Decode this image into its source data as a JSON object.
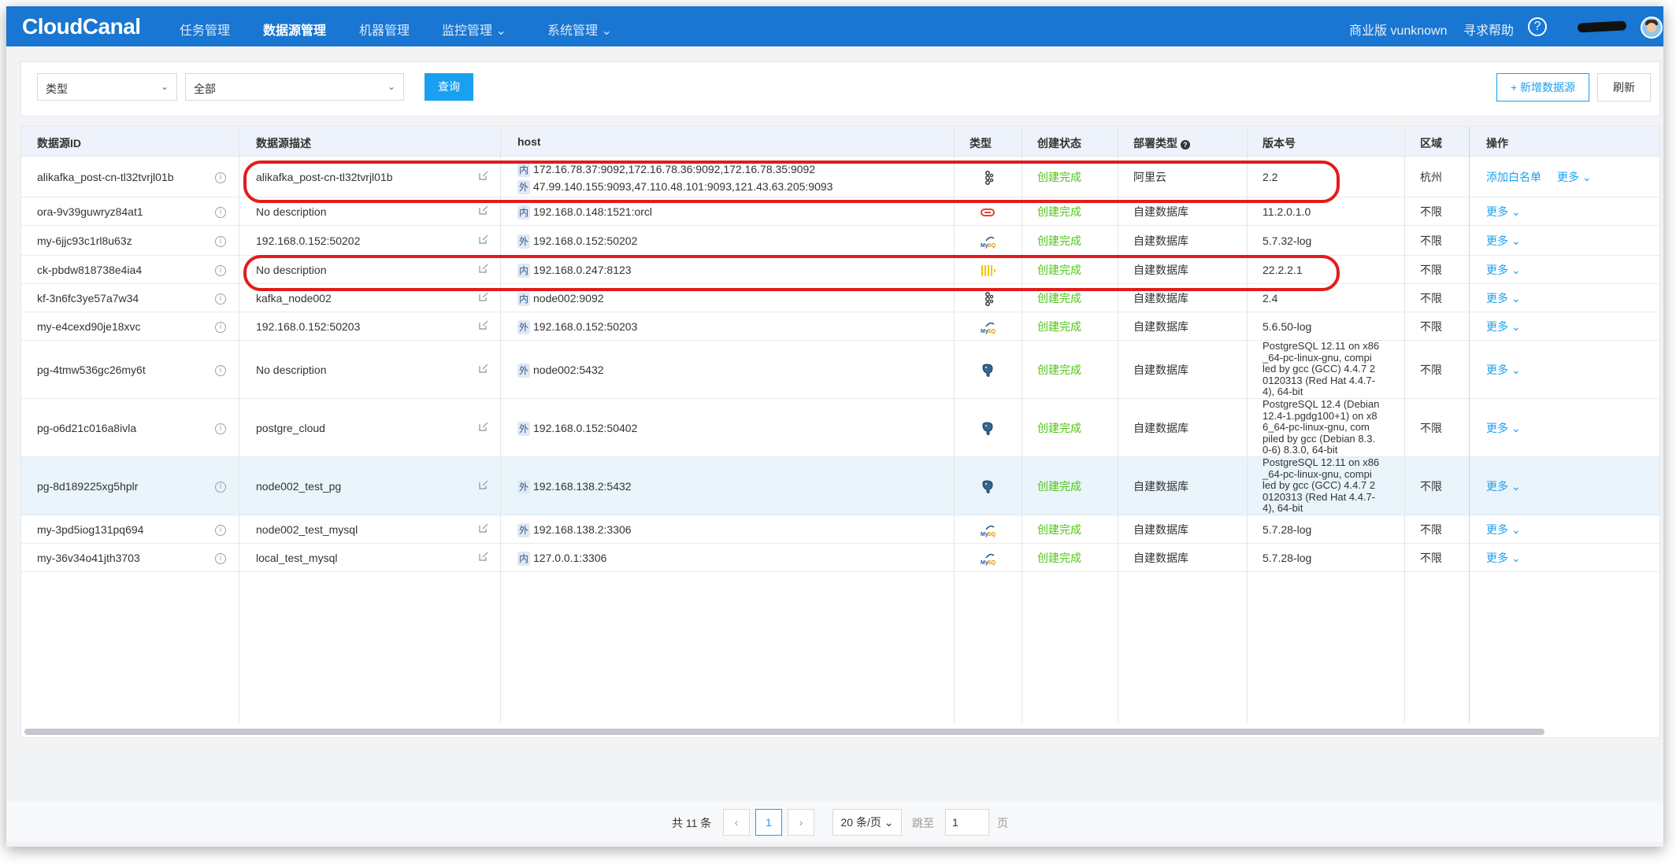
{
  "nav": {
    "logo": "CloudCanal",
    "items": [
      {
        "label": "任务管理"
      },
      {
        "label": "数据源管理"
      },
      {
        "label": "机器管理"
      },
      {
        "label": "监控管理 ⌄"
      },
      {
        "label": "系统管理 ⌄"
      }
    ],
    "edition": "商业版 vunknown",
    "help": "寻求帮助",
    "help_icon": "?"
  },
  "filter": {
    "type_select": "类型",
    "value_select": "全部",
    "query_button": "查询",
    "add_button": "+ 新增数据源",
    "refresh_button": "刷新"
  },
  "table": {
    "headers": {
      "id": "数据源ID",
      "desc": "数据源描述",
      "host": "host",
      "type": "类型",
      "status": "创建状态",
      "deploy": "部署类型",
      "version": "版本号",
      "region": "区域",
      "ops": "操作"
    },
    "rows": [
      {
        "id": "alikafka_post-cn-tl32tvrjl01b",
        "desc": "alikafka_post-cn-tl32tvrjl01b",
        "host1_tag": "内",
        "host1": "172.16.78.37:9092,172.16.78.36:9092,172.16.78.35:9092",
        "host2_tag": "外",
        "host2": "47.99.140.155:9093,47.110.48.101:9093,121.43.63.205:9093",
        "type": "kafka",
        "status": "创建完成",
        "deploy": "阿里云",
        "version": "2.2",
        "region": "杭州",
        "op_extra": "添加白名单",
        "op_more": "更多 ⌄"
      },
      {
        "id": "ora-9v39guwryz84at1",
        "desc": "No description",
        "host1_tag": "内",
        "host1": "192.168.0.148:1521:orcl",
        "type": "oracle",
        "status": "创建完成",
        "deploy": "自建数据库",
        "version": "11.2.0.1.0",
        "region": "不限",
        "op_more": "更多 ⌄"
      },
      {
        "id": "my-6jjc93c1rl8u63z",
        "desc": "192.168.0.152:50202",
        "host1_tag": "外",
        "host1": "192.168.0.152:50202",
        "type": "mysql",
        "status": "创建完成",
        "deploy": "自建数据库",
        "version": "5.7.32-log",
        "region": "不限",
        "op_more": "更多 ⌄"
      },
      {
        "id": "ck-pbdw818738e4ia4",
        "desc": "No description",
        "host1_tag": "内",
        "host1": "192.168.0.247:8123",
        "type": "clickhouse",
        "status": "创建完成",
        "deploy": "自建数据库",
        "version": "22.2.2.1",
        "region": "不限",
        "op_more": "更多 ⌄"
      },
      {
        "id": "kf-3n6fc3ye57a7w34",
        "desc": "kafka_node002",
        "host1_tag": "内",
        "host1": "node002:9092",
        "type": "kafka",
        "status": "创建完成",
        "deploy": "自建数据库",
        "version": "2.4",
        "region": "不限",
        "op_more": "更多 ⌄"
      },
      {
        "id": "my-e4cexd90je18xvc",
        "desc": "192.168.0.152:50203",
        "host1_tag": "外",
        "host1": "192.168.0.152:50203",
        "type": "mysql",
        "status": "创建完成",
        "deploy": "自建数据库",
        "version": "5.6.50-log",
        "region": "不限",
        "op_more": "更多 ⌄"
      },
      {
        "id": "pg-4tmw536gc26my6t",
        "desc": "No description",
        "host1_tag": "外",
        "host1": "node002:5432",
        "type": "postgresql",
        "status": "创建完成",
        "deploy": "自建数据库",
        "version_lines": [
          "PostgreSQL 12.11 on x86",
          "_64-pc-linux-gnu, compi",
          "led by gcc (GCC) 4.4.7 2",
          "0120313 (Red Hat 4.4.7-",
          "4), 64-bit"
        ],
        "region": "不限",
        "op_more": "更多 ⌄"
      },
      {
        "id": "pg-o6d21c016a8ivla",
        "desc": "postgre_cloud",
        "host1_tag": "外",
        "host1": "192.168.0.152:50402",
        "type": "postgresql",
        "status": "创建完成",
        "deploy": "自建数据库",
        "version_lines": [
          "PostgreSQL 12.4 (Debian",
          "12.4-1.pgdg100+1) on x8",
          "6_64-pc-linux-gnu, com",
          "piled by gcc (Debian 8.3.",
          "0-6) 8.3.0, 64-bit"
        ],
        "region": "不限",
        "op_more": "更多 ⌄"
      },
      {
        "id": "pg-8d189225xg5hplr",
        "desc": "node002_test_pg",
        "host1_tag": "外",
        "host1": "192.168.138.2:5432",
        "type": "postgresql",
        "status": "创建完成",
        "deploy": "自建数据库",
        "version_lines": [
          "PostgreSQL 12.11 on x86",
          "_64-pc-linux-gnu, compi",
          "led by gcc (GCC) 4.4.7 2",
          "0120313 (Red Hat 4.4.7-",
          "4), 64-bit"
        ],
        "region": "不限",
        "op_more": "更多 ⌄"
      },
      {
        "id": "my-3pd5iog131pq694",
        "desc": "node002_test_mysql",
        "host1_tag": "外",
        "host1": "192.168.138.2:3306",
        "type": "mysql",
        "status": "创建完成",
        "deploy": "自建数据库",
        "version": "5.7.28-log",
        "region": "不限",
        "op_more": "更多 ⌄"
      },
      {
        "id": "my-36v34o41jth3703",
        "desc": "local_test_mysql",
        "host1_tag": "内",
        "host1": "127.0.0.1:3306",
        "type": "mysql",
        "status": "创建完成",
        "deploy": "自建数据库",
        "version": "5.7.28-log",
        "region": "不限",
        "op_more": "更多 ⌄"
      }
    ]
  },
  "pagination": {
    "total": "共 11 条",
    "prev": "‹",
    "current": "1",
    "next": "›",
    "page_size": "20 条/页 ⌄",
    "jump_label": "跳至",
    "jump_value": "1",
    "page_suffix": "页"
  },
  "colors": {
    "nav_bg": "#1976d2",
    "accent": "#1aa0f0",
    "success": "#52c41a",
    "highlight_box": "#e31b1b"
  }
}
